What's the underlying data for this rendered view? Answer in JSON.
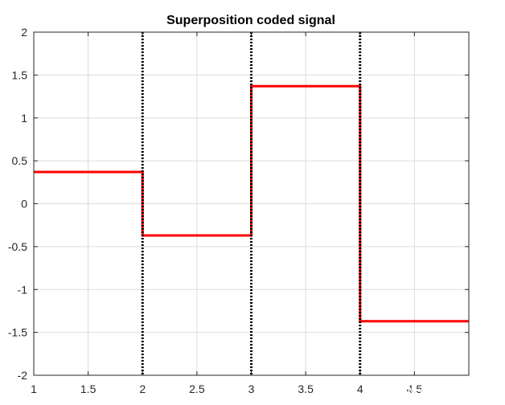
{
  "chart_data": {
    "type": "line",
    "title": "Superposition coded signal",
    "xlabel": "",
    "ylabel": "",
    "xlim": [
      1,
      5
    ],
    "ylim": [
      -2,
      2
    ],
    "xticks": [
      1,
      1.5,
      2,
      2.5,
      3,
      3.5,
      4,
      4.5
    ],
    "xtick_labels": [
      "1",
      "1.5",
      "2",
      "2.5",
      "3",
      "3.5",
      "4",
      "4.5"
    ],
    "yticks": [
      -2,
      -1.5,
      -1,
      -0.5,
      0,
      0.5,
      1,
      1.5,
      2
    ],
    "ytick_labels": [
      "-2",
      "-1.5",
      "-1",
      "-0.5",
      "0",
      "0.5",
      "1",
      "1.5",
      "2"
    ],
    "grid": true,
    "series": [
      {
        "color": "#ff0000",
        "style": "solid",
        "x": [
          1,
          2,
          2,
          3,
          3,
          4,
          4,
          5
        ],
        "y": [
          0.37,
          0.37,
          -0.37,
          -0.37,
          1.37,
          1.37,
          -1.37,
          -1.37
        ]
      }
    ],
    "vlines": {
      "x": [
        2,
        3,
        4
      ],
      "color": "#000000",
      "style": "dotted"
    }
  },
  "watermark": "CSDN @一只小信鸽"
}
